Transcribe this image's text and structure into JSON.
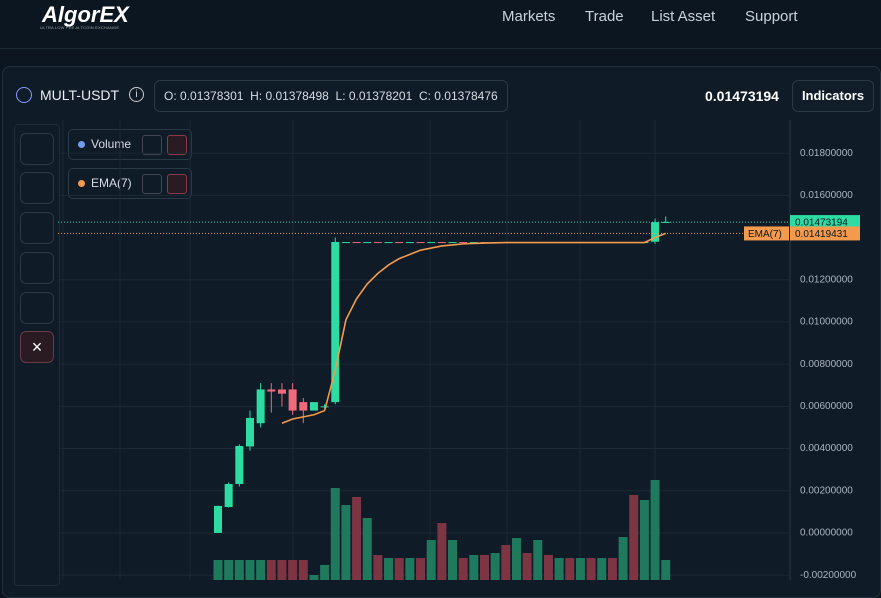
{
  "header": {
    "logo": "AlgorEX",
    "tagline": "ULTRA LOW FEE ALTCOIN EXCHANGE",
    "nav": [
      "Markets",
      "Trade",
      "List Asset",
      "Support"
    ]
  },
  "ticker": {
    "symbol": "MULT-USDT",
    "ohlc": [
      {
        "label": "O:",
        "value": 0.01378301
      },
      {
        "label": "H:",
        "value": 0.01378498
      },
      {
        "label": "L:",
        "value": 0.01378201
      },
      {
        "label": "C:",
        "value": 0.01378476
      }
    ],
    "price": 0.01473194,
    "button": "Indicators"
  },
  "indicators": [
    "Volume",
    "EMA(7)"
  ],
  "chart_data": {
    "type": "candlestick",
    "open": [
      0,
      0.00123,
      0.00232,
      0.0041,
      0.0052,
      0.0068,
      0.0068,
      0.0068,
      0.0062,
      0.0058,
      0.006,
      0.0062,
      0.013782,
      0.013785,
      0.013782,
      0.013785,
      0.013782,
      0.013785,
      0.013782,
      0.013785,
      0.013782,
      0.013785,
      0.013782,
      0.013785,
      0.013782,
      0.013785,
      0.013782,
      0.013785,
      0.013782,
      0.013785,
      0.013782,
      0.013785,
      0.013782,
      0.013785,
      0.013782,
      0.013785,
      0.013782,
      0.013785,
      0.013782,
      0.013785,
      0.013782,
      0.0138,
      0.01473
    ],
    "high": [
      0.0013,
      0.0024,
      0.0042,
      0.0058,
      0.0071,
      0.0071,
      0.0071,
      0.0071,
      0.0064,
      0.0062,
      0.0061,
      0.014,
      0.013785,
      0.013785,
      0.013785,
      0.013785,
      0.013785,
      0.013785,
      0.013785,
      0.013785,
      0.013785,
      0.013785,
      0.013785,
      0.013785,
      0.013785,
      0.013785,
      0.013785,
      0.013785,
      0.013785,
      0.013785,
      0.013785,
      0.013785,
      0.013785,
      0.013785,
      0.013785,
      0.013785,
      0.013785,
      0.013785,
      0.013785,
      0.013785,
      0.013785,
      0.0149,
      0.015
    ],
    "low": [
      0,
      0.0012,
      0.0022,
      0.0039,
      0.005,
      0.0057,
      0.006,
      0.0056,
      0.0052,
      0.0058,
      0.0059,
      0.0061,
      0.013782,
      0.013782,
      0.013782,
      0.013782,
      0.013782,
      0.013782,
      0.013782,
      0.013782,
      0.013782,
      0.013782,
      0.013782,
      0.013782,
      0.013782,
      0.013782,
      0.013782,
      0.013782,
      0.013782,
      0.013782,
      0.013782,
      0.013782,
      0.013782,
      0.013782,
      0.013782,
      0.013782,
      0.013782,
      0.013782,
      0.013782,
      0.013782,
      0.013782,
      0.0137,
      0.01473
    ],
    "close": [
      0.00128,
      0.00232,
      0.00412,
      0.00545,
      0.0068,
      0.0067,
      0.0066,
      0.0058,
      0.0058,
      0.0062,
      0.006,
      0.01379,
      0.013785,
      0.013782,
      0.013785,
      0.013782,
      0.013785,
      0.013782,
      0.013785,
      0.013782,
      0.013785,
      0.013782,
      0.013785,
      0.013782,
      0.013785,
      0.013782,
      0.013785,
      0.013782,
      0.013785,
      0.013782,
      0.013785,
      0.013782,
      0.013785,
      0.013782,
      0.013785,
      0.013782,
      0.013785,
      0.013782,
      0.013785,
      0.013782,
      0.013785,
      0.01473,
      0.01474
    ],
    "volume": [
      20,
      20,
      20,
      20,
      20,
      20,
      20,
      20,
      20,
      5,
      15,
      92,
      75,
      83,
      62,
      25,
      22,
      22,
      22,
      22,
      40,
      57,
      40,
      22,
      25,
      25,
      27,
      35,
      42,
      27,
      40,
      25,
      22,
      22,
      22,
      22,
      22,
      22,
      43,
      85,
      80,
      100,
      20
    ],
    "ema": {
      "name": "EMA(7)",
      "color": "#f39a4c",
      "values": [
        null,
        null,
        null,
        null,
        null,
        null,
        0.0052,
        0.0054,
        0.0055,
        0.0056,
        0.0058,
        0.0077,
        0.0101,
        0.0111,
        0.0118,
        0.0123,
        0.0127,
        0.013,
        0.0132,
        0.0134,
        0.0135,
        0.0136,
        0.01365,
        0.0137,
        0.01372,
        0.01374,
        0.01375,
        0.01376,
        0.01376,
        0.01376,
        0.01376,
        0.01376,
        0.01376,
        0.01376,
        0.01376,
        0.01376,
        0.01376,
        0.01376,
        0.01376,
        0.01376,
        0.01376,
        0.014,
        0.01419431
      ]
    },
    "up_color": "#2ddca2",
    "down_color": "#f06a7c",
    "last_price": 0.01473194,
    "ema_last": 0.01419431,
    "ylim": [
      -0.00223,
      0.01957
    ],
    "yticks": [
      {
        "value": -0.002,
        "label": "-0.00200000"
      },
      {
        "value": 0,
        "label": "0.00000000"
      },
      {
        "value": 0.002,
        "label": "0.00200000"
      },
      {
        "value": 0.004,
        "label": "0.00400000"
      },
      {
        "value": 0.006,
        "label": "0.00600000"
      },
      {
        "value": 0.008,
        "label": "0.00800000"
      },
      {
        "value": 0.01,
        "label": "0.01000000"
      },
      {
        "value": 0.012,
        "label": "0.01200000"
      },
      {
        "value": 0.016,
        "label": "0.01600000"
      },
      {
        "value": 0.018,
        "label": "0.01800000"
      }
    ],
    "grid": true
  }
}
